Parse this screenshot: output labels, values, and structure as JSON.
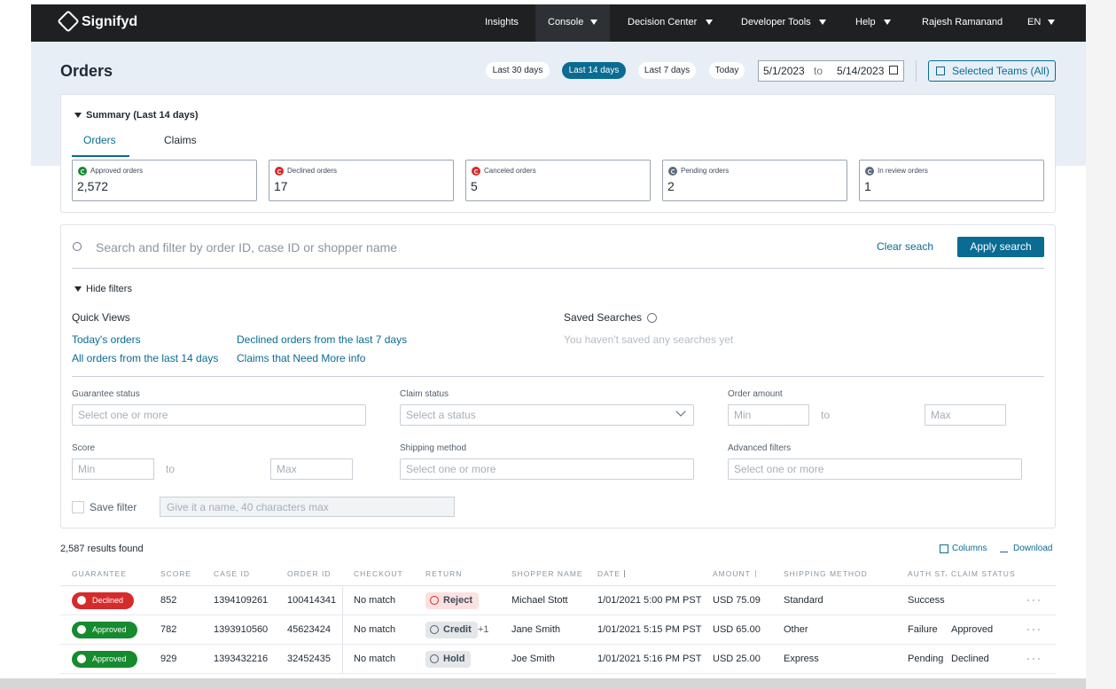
{
  "nav": {
    "brand": "Signifyd",
    "items": [
      "Insights",
      "Console",
      "Decision Center",
      "Developer Tools",
      "Help",
      "Rajesh Ramanand",
      "EN"
    ]
  },
  "header": {
    "title": "Orders",
    "ranges": [
      "Last 30 days",
      "Last 14 days",
      "Last 7 days",
      "Today"
    ],
    "date_from": "5/1/2023",
    "date_sep": "to",
    "date_to": "5/14/2023",
    "teams": "Selected Teams (All)"
  },
  "summary": {
    "title": "Summary (Last 14 days)",
    "tabs": [
      "Orders",
      "Claims"
    ],
    "cards": [
      {
        "label": "Approved orders",
        "value": "2,572",
        "icon_color": "#158a2e"
      },
      {
        "label": "Declined orders",
        "value": "17",
        "icon_color": "#d62b2b"
      },
      {
        "label": "Canceled orders",
        "value": "5",
        "icon_color": "#d62b2b"
      },
      {
        "label": "Pending orders",
        "value": "2",
        "icon_color": "#5b6b7a"
      },
      {
        "label": "In review orders",
        "value": "1",
        "icon_color": "#5b6b7a"
      }
    ]
  },
  "search": {
    "placeholder": "Search and filter by order ID, case ID or shopper name",
    "clear": "Clear seach",
    "apply": "Apply search",
    "hide_filters": "Hide filters",
    "quick_views_title": "Quick Views",
    "quick_views": [
      "Today's orders",
      "Declined orders from the last 7 days",
      "All orders from the last 14 days",
      "Claims that Need More info"
    ],
    "saved_title": "Saved Searches",
    "saved_empty": "You haven't saved any searches yet",
    "guarantee_status": {
      "label": "Guarantee status",
      "placeholder": "Select one or more"
    },
    "claim_status": {
      "label": "Claim status",
      "placeholder": "Select a status"
    },
    "order_amount": {
      "label": "Order amount",
      "min": "Min",
      "sep": "to",
      "max": "Max"
    },
    "score": {
      "label": "Score",
      "min": "Min",
      "sep": "to",
      "max": "Max"
    },
    "shipping_method": {
      "label": "Shipping method",
      "placeholder": "Select one or more"
    },
    "advanced_filters": {
      "label": "Advanced filters",
      "placeholder": "Select one or more"
    },
    "save_filter": {
      "label": "Save filter",
      "placeholder": "Give it a name, 40 characters max"
    }
  },
  "results": {
    "count": "2,587 results found",
    "columns": "Columns",
    "download": "Download",
    "headers": [
      "GUARANTEE",
      "SCORE",
      "CASE ID",
      "ORDER ID",
      "CHECKOUT",
      "RETURN",
      "SHOPPER NAME",
      "DATE",
      "AMOUNT",
      "SHIPPING METHOD",
      "AUTH STATUS",
      "CLAIM STATUS"
    ],
    "rows": [
      {
        "guarantee": "Declined",
        "guarantee_color": "#d62b2b",
        "score": "852",
        "case_id": "1394109261",
        "order_id": "100414341",
        "checkout": "No match",
        "return": "Reject",
        "return_color": "#fde0e0",
        "shopper": "Michael Stott",
        "date": "1/01/2021 5:00 PM PST",
        "amount": "USD 75.09",
        "shipping": "Standard",
        "auth": "Success"
      },
      {
        "guarantee": "Approved",
        "guarantee_color": "#158a2e",
        "score": "782",
        "case_id": "1393910560",
        "order_id": "45623424",
        "checkout": "No match",
        "return": "Credit",
        "return_color": "#e4e6e9",
        "return_extra": "+1",
        "shopper": "Jane Smith",
        "date": "1/01/2021 5:15 PM PST",
        "amount": "USD 65.00",
        "shipping": "Other",
        "auth": "Failure",
        "claim": "Approved"
      },
      {
        "guarantee": "Approved",
        "guarantee_color": "#158a2e",
        "score": "929",
        "case_id": "1393432216",
        "order_id": "32452435",
        "checkout": "No match",
        "return": "Hold",
        "return_color": "#e4e6e9",
        "shopper": "Joe Smith",
        "date": "1/01/2021 5:16 PM PST",
        "amount": "USD 25.00",
        "shipping": "Express",
        "auth": "Pending",
        "claim": "Declined"
      }
    ]
  }
}
